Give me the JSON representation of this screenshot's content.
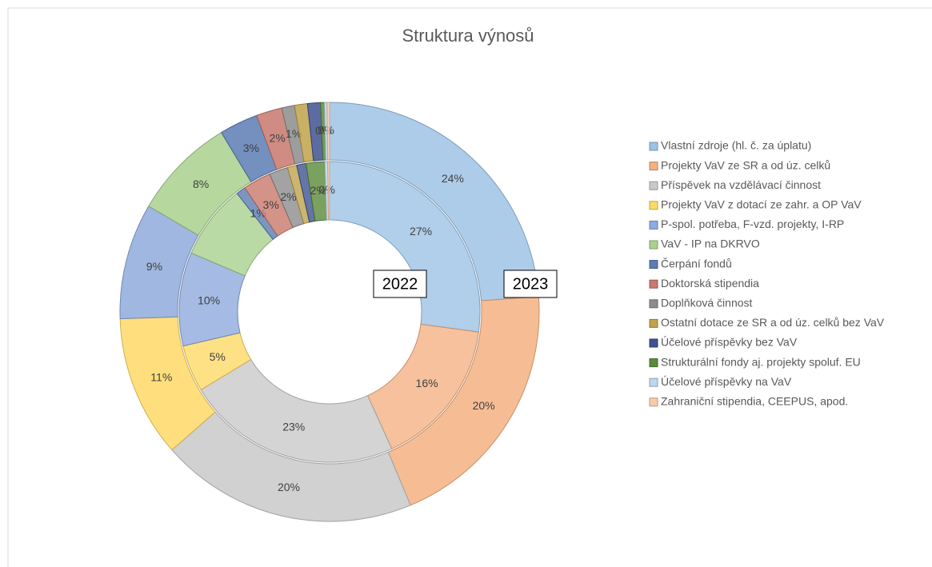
{
  "chart_data": {
    "type": "donut",
    "title": "Struktura výnosů",
    "categories": [
      "Vlastní zdroje (hl. č. za úplatu)",
      "Projekty VaV ze SR a od úz. celků",
      "Příspěvek na vzdělávací činnost",
      "Projekty VaV z dotací ze zahr. a OP VaV",
      "P-spol. potřeba, F-vzd. projekty, I-RP",
      "VaV - IP na DKRVO",
      "Čerpání fondů",
      "Doktorská stipendia",
      "Doplňková činnost",
      "Ostatní dotace ze SR a od úz. celků bez VaV",
      "Účelové příspěvky bez VaV",
      "Strukturální fondy aj. projekty spoluf. EU",
      "Účelové příspěvky  na VaV",
      "Zahraniční stipendia, CEEPUS, apod."
    ],
    "colors": [
      "#9dc3e6",
      "#f4b183",
      "#c9c9c9",
      "#ffd966",
      "#8faadc",
      "#a9d18e",
      "#5b7cb4",
      "#c8786c",
      "#8c8c8c",
      "#bfa24a",
      "#3f5290",
      "#5a8a3a",
      "#bdd7ee",
      "#f8cbad"
    ],
    "series": [
      {
        "name": "2022",
        "values": [
          27,
          16,
          23,
          5,
          10,
          8,
          1,
          3,
          2,
          1,
          1,
          2,
          0.3,
          0.2
        ],
        "value_labels": [
          "27%",
          "16%",
          "23%",
          "5%",
          "10%",
          null,
          "1%",
          "3%",
          "2%",
          null,
          null,
          "2%",
          "0%",
          null
        ]
      },
      {
        "name": "2023",
        "values": [
          24,
          20,
          20,
          11,
          9,
          8,
          3,
          2,
          1,
          1,
          1,
          0.3,
          0.2,
          0.2
        ],
        "value_labels": [
          "24%",
          "20%",
          "20%",
          "11%",
          "9%",
          "8%",
          "3%",
          "2%",
          "1%",
          null,
          null,
          "0%",
          "0%",
          null
        ]
      }
    ]
  }
}
